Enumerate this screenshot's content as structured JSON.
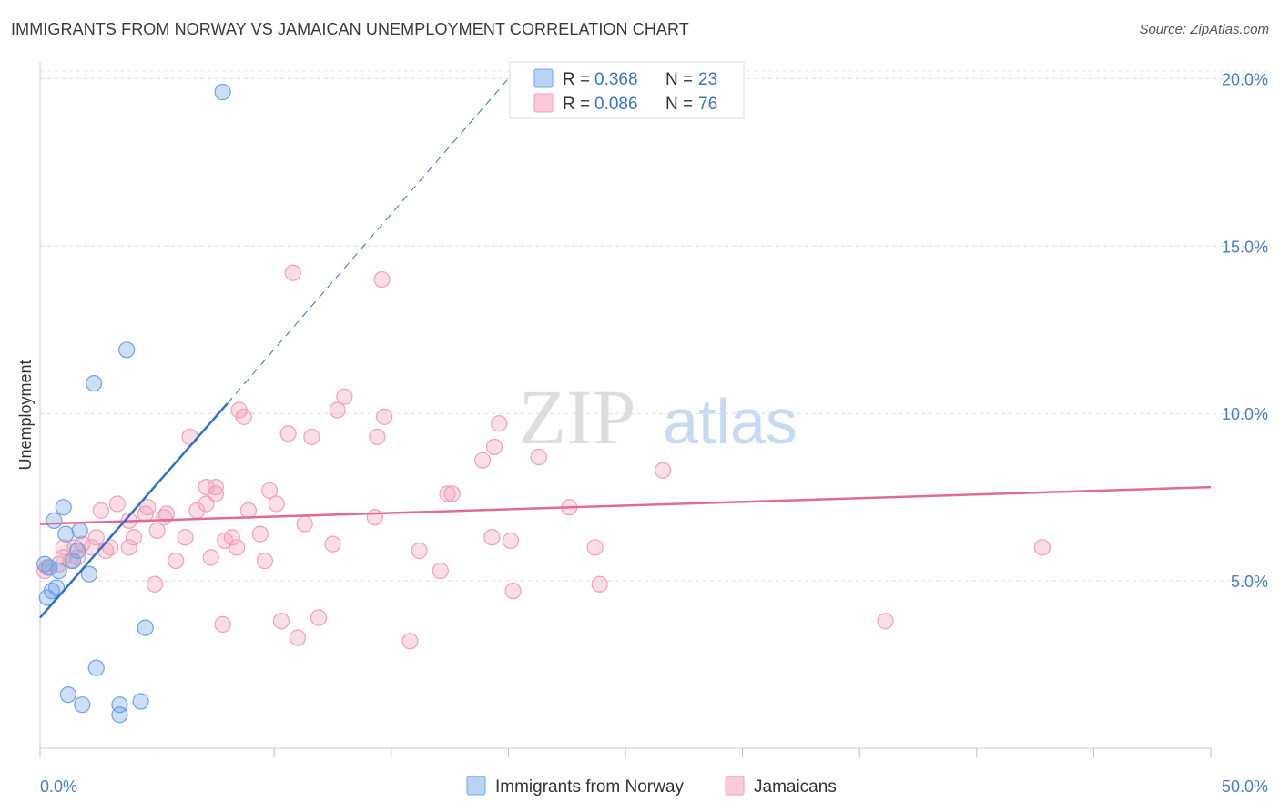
{
  "title": "IMMIGRANTS FROM NORWAY VS JAMAICAN UNEMPLOYMENT CORRELATION CHART",
  "source": "Source: ZipAtlas.com",
  "watermark": {
    "zip": "ZIP",
    "atlas": "atlas"
  },
  "legend_top": {
    "rows": [
      {
        "r_label": "R = ",
        "r_value": "0.368",
        "n_label": "N = ",
        "n_value": "23"
      },
      {
        "r_label": "R = ",
        "r_value": "0.086",
        "n_label": "N = ",
        "n_value": "76"
      }
    ]
  },
  "chart_data": {
    "type": "scatter",
    "title": "IMMIGRANTS FROM NORWAY VS JAMAICAN UNEMPLOYMENT CORRELATION CHART",
    "xlabel": "",
    "ylabel": "Unemployment",
    "xlim": [
      0,
      50
    ],
    "ylim": [
      0,
      20.5
    ],
    "x_tick_labels": [
      "0.0%",
      "50.0%"
    ],
    "y_ticks": [
      5,
      10,
      15,
      20
    ],
    "y_tick_labels": [
      "5.0%",
      "10.0%",
      "15.0%",
      "20.0%"
    ],
    "legend": [
      "Immigrants from Norway",
      "Jamaicans"
    ],
    "colors": {
      "norway": "#6fa3e3",
      "norway_line": "#2f72c9",
      "jamaicans": "#f2a0b8",
      "jamaicans_line": "#e06c96"
    },
    "series": [
      {
        "name": "Immigrants from Norway",
        "R": 0.368,
        "N": 23,
        "trend": {
          "x0": 0,
          "y0": 3.9,
          "x1": 8.0,
          "y1": 10.3,
          "dash_to_x": 20.0,
          "dash_to_y": 20.0
        },
        "points": [
          [
            7.8,
            19.6
          ],
          [
            3.7,
            11.9
          ],
          [
            2.3,
            10.9
          ],
          [
            1.0,
            7.2
          ],
          [
            0.6,
            6.8
          ],
          [
            1.7,
            6.5
          ],
          [
            1.1,
            6.4
          ],
          [
            1.6,
            5.9
          ],
          [
            1.4,
            5.6
          ],
          [
            0.8,
            5.3
          ],
          [
            0.4,
            5.4
          ],
          [
            2.1,
            5.2
          ],
          [
            0.7,
            4.8
          ],
          [
            0.5,
            4.7
          ],
          [
            0.3,
            4.5
          ],
          [
            0.2,
            5.5
          ],
          [
            4.5,
            3.6
          ],
          [
            2.4,
            2.4
          ],
          [
            1.2,
            1.6
          ],
          [
            1.8,
            1.3
          ],
          [
            3.4,
            1.3
          ],
          [
            4.3,
            1.4
          ],
          [
            3.4,
            1.0
          ]
        ]
      },
      {
        "name": "Jamaicans",
        "R": 0.086,
        "N": 76,
        "trend": {
          "x0": 0,
          "y0": 6.7,
          "x1": 50,
          "y1": 7.8
        },
        "points": [
          [
            10.8,
            14.2
          ],
          [
            14.6,
            14.0
          ],
          [
            13.0,
            10.5
          ],
          [
            8.5,
            10.1
          ],
          [
            8.7,
            9.9
          ],
          [
            12.7,
            10.1
          ],
          [
            14.7,
            9.9
          ],
          [
            19.6,
            9.7
          ],
          [
            6.4,
            9.3
          ],
          [
            10.6,
            9.4
          ],
          [
            11.6,
            9.3
          ],
          [
            14.4,
            9.3
          ],
          [
            19.4,
            9.0
          ],
          [
            18.9,
            8.6
          ],
          [
            21.3,
            8.7
          ],
          [
            26.6,
            8.3
          ],
          [
            7.1,
            7.8
          ],
          [
            7.5,
            7.8
          ],
          [
            9.8,
            7.7
          ],
          [
            7.5,
            7.6
          ],
          [
            17.6,
            7.6
          ],
          [
            17.4,
            7.6
          ],
          [
            3.3,
            7.3
          ],
          [
            4.6,
            7.2
          ],
          [
            7.1,
            7.3
          ],
          [
            2.6,
            7.1
          ],
          [
            4.5,
            7.0
          ],
          [
            5.4,
            7.0
          ],
          [
            6.7,
            7.1
          ],
          [
            8.9,
            7.1
          ],
          [
            10.1,
            7.3
          ],
          [
            14.3,
            6.9
          ],
          [
            22.6,
            7.2
          ],
          [
            3.8,
            6.8
          ],
          [
            5.3,
            6.9
          ],
          [
            11.3,
            6.7
          ],
          [
            5.0,
            6.5
          ],
          [
            4.0,
            6.3
          ],
          [
            6.2,
            6.3
          ],
          [
            2.4,
            6.3
          ],
          [
            7.9,
            6.2
          ],
          [
            9.4,
            6.4
          ],
          [
            12.5,
            6.1
          ],
          [
            19.3,
            6.3
          ],
          [
            20.1,
            6.2
          ],
          [
            1.0,
            6.0
          ],
          [
            1.5,
            6.0
          ],
          [
            1.8,
            6.1
          ],
          [
            2.2,
            6.0
          ],
          [
            3.0,
            6.0
          ],
          [
            3.8,
            6.0
          ],
          [
            8.2,
            6.3
          ],
          [
            8.4,
            6.0
          ],
          [
            16.2,
            5.9
          ],
          [
            23.7,
            6.0
          ],
          [
            42.8,
            6.0
          ],
          [
            1.0,
            5.7
          ],
          [
            1.6,
            5.7
          ],
          [
            2.8,
            5.9
          ],
          [
            5.8,
            5.6
          ],
          [
            7.3,
            5.7
          ],
          [
            9.6,
            5.6
          ],
          [
            0.8,
            5.5
          ],
          [
            1.3,
            5.6
          ],
          [
            0.3,
            5.4
          ],
          [
            0.2,
            5.3
          ],
          [
            17.1,
            5.3
          ],
          [
            4.9,
            4.9
          ],
          [
            20.2,
            4.7
          ],
          [
            23.9,
            4.9
          ],
          [
            7.8,
            3.7
          ],
          [
            10.3,
            3.8
          ],
          [
            11.9,
            3.9
          ],
          [
            36.1,
            3.8
          ],
          [
            11.0,
            3.3
          ],
          [
            15.8,
            3.2
          ]
        ]
      }
    ]
  }
}
